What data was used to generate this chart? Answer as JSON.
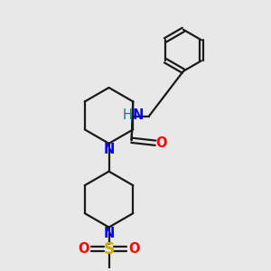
{
  "background_color": "#e8e8e8",
  "bond_color": "#1a1a1a",
  "N_color": "#0000ff",
  "O_color": "#ff0000",
  "S_color": "#ccaa00",
  "NH_color": "#008080",
  "line_width": 1.6,
  "font_size": 10.5,
  "figsize": [
    3.0,
    3.0
  ],
  "dpi": 100,
  "xlim": [
    0,
    10
  ],
  "ylim": [
    0,
    10
  ]
}
